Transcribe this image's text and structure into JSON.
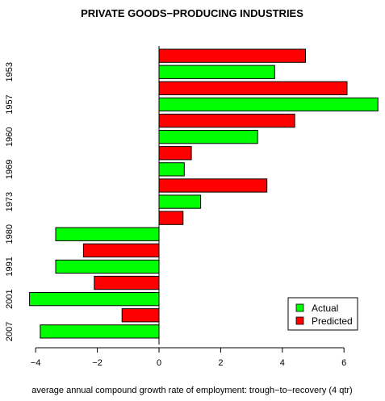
{
  "chart_data": {
    "type": "bar",
    "orientation": "horizontal",
    "title": "PRIVATE GOODS−PRODUCING INDUSTRIES",
    "xlabel": "average annual compound growth rate of employment: trough−to−recovery (4 qtr)",
    "ylabel": "",
    "xlim": [
      -4.3,
      7.2
    ],
    "x_ticks": [
      -4,
      -2,
      0,
      2,
      4,
      6
    ],
    "x_tick_labels": [
      "−4",
      "−2",
      "0",
      "2",
      "4",
      "6"
    ],
    "grid": false,
    "legend_position": "bottom-right",
    "categories": [
      "1953",
      "1957",
      "1960",
      "1969",
      "1973",
      "1980",
      "1991",
      "2001",
      "2007"
    ],
    "series": [
      {
        "name": "Actual",
        "color": "#00ff00",
        "values": [
          3.75,
          7.1,
          3.2,
          0.82,
          1.35,
          -3.35,
          -3.35,
          -4.2,
          -3.85
        ]
      },
      {
        "name": "Predicted",
        "color": "#ff0000",
        "values": [
          4.75,
          6.1,
          4.4,
          1.05,
          3.5,
          0.78,
          -2.45,
          -2.1,
          -1.2
        ]
      }
    ]
  }
}
